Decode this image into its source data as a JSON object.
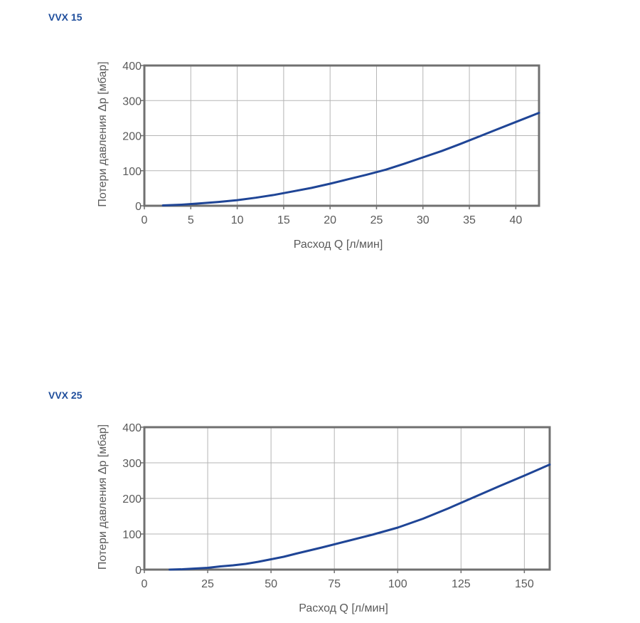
{
  "chart_data": [
    {
      "type": "line",
      "title": "VVX 15",
      "xlabel": "Расход Q [л/мин]",
      "ylabel": "Потери давления Δp [мбар]",
      "xlim": [
        0,
        42.5
      ],
      "ylim": [
        0,
        400
      ],
      "xticks": [
        0,
        5,
        10,
        15,
        20,
        25,
        30,
        35,
        40
      ],
      "yticks": [
        0,
        100,
        200,
        300,
        400
      ],
      "grid": true,
      "colors": {
        "line": "#1f4596",
        "frame": "#707070",
        "grid": "#b5b5b5"
      },
      "series": [
        {
          "x": [
            2,
            4,
            6,
            8,
            10,
            12,
            14,
            16,
            18,
            20,
            22,
            24,
            26,
            28,
            30,
            32,
            34,
            36,
            38,
            40,
            42.5
          ],
          "y": [
            1,
            3,
            7,
            11,
            16,
            23,
            31,
            41,
            51,
            63,
            76,
            89,
            103,
            120,
            138,
            156,
            176,
            197,
            218,
            239,
            265
          ]
        }
      ]
    },
    {
      "type": "line",
      "title": "VVX 25",
      "xlabel": "Расход Q [л/мин]",
      "ylabel": "Потери давления Δp [мбар]",
      "xlim": [
        0,
        160
      ],
      "ylim": [
        0,
        400
      ],
      "xticks": [
        0,
        25,
        50,
        75,
        100,
        125,
        150
      ],
      "yticks": [
        0,
        100,
        200,
        300,
        400
      ],
      "grid": true,
      "colors": {
        "line": "#1f4596",
        "frame": "#707070",
        "grid": "#b5b5b5"
      },
      "series": [
        {
          "x": [
            10,
            15,
            20,
            25,
            30,
            35,
            40,
            45,
            50,
            55,
            60,
            70,
            80,
            90,
            100,
            110,
            120,
            130,
            140,
            150,
            160
          ],
          "y": [
            0,
            1,
            3,
            5,
            9,
            12,
            16,
            22,
            29,
            36,
            45,
            62,
            80,
            98,
            118,
            143,
            172,
            203,
            234,
            264,
            295
          ]
        }
      ]
    }
  ]
}
